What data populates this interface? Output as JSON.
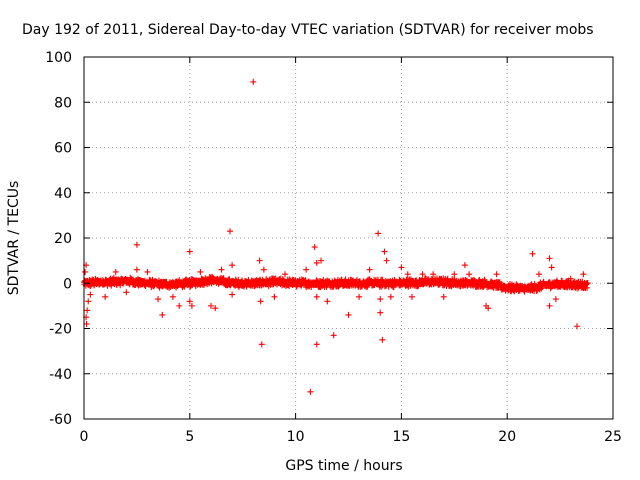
{
  "chart_data": {
    "type": "scatter",
    "title": "Day 192 of 2011, Sidereal Day-to-day VTEC variation (SDTVAR) for receiver mobs",
    "xlabel": "GPS time / hours",
    "ylabel": "SDTVAR / TECUs",
    "xlim": [
      0,
      25
    ],
    "ylim": [
      -60,
      100
    ],
    "xticks": [
      "0",
      "5",
      "10",
      "15",
      "20",
      "25"
    ],
    "yticks": [
      "-60",
      "-40",
      "-20",
      "0",
      "20",
      "40",
      "60",
      "80",
      "100"
    ],
    "grid": true,
    "marker": "plus",
    "series_color": "#ff0000",
    "band": {
      "x_start": 0,
      "x_end": 23.8,
      "step_hours": 0.03,
      "centers": [
        [
          0,
          0
        ],
        [
          1,
          0.5
        ],
        [
          2,
          1
        ],
        [
          3,
          0
        ],
        [
          4,
          -0.5
        ],
        [
          5,
          0
        ],
        [
          6,
          1.5
        ],
        [
          7,
          0
        ],
        [
          8,
          0
        ],
        [
          9,
          0.5
        ],
        [
          10,
          0
        ],
        [
          11,
          0
        ],
        [
          12,
          0
        ],
        [
          13,
          0
        ],
        [
          14,
          0
        ],
        [
          15,
          0
        ],
        [
          16,
          0.5
        ],
        [
          17,
          0.5
        ],
        [
          18,
          0
        ],
        [
          19,
          0
        ],
        [
          20,
          -2
        ],
        [
          21,
          -2.5
        ],
        [
          22,
          -0.5
        ],
        [
          23,
          -0.5
        ],
        [
          23.8,
          -1
        ]
      ]
    },
    "points": [
      {
        "x": 0.1,
        "y": 8
      },
      {
        "x": 0.1,
        "y": -15
      },
      {
        "x": 0.15,
        "y": -12
      },
      {
        "x": 0.2,
        "y": -8
      },
      {
        "x": 0.05,
        "y": 5
      },
      {
        "x": 0.3,
        "y": -5
      },
      {
        "x": 0.12,
        "y": -18
      },
      {
        "x": 1.0,
        "y": -6
      },
      {
        "x": 1.5,
        "y": 5
      },
      {
        "x": 2.0,
        "y": -4
      },
      {
        "x": 2.5,
        "y": 17
      },
      {
        "x": 2.5,
        "y": 6
      },
      {
        "x": 3.0,
        "y": 5
      },
      {
        "x": 3.5,
        "y": -7
      },
      {
        "x": 3.7,
        "y": -14
      },
      {
        "x": 4.2,
        "y": -6
      },
      {
        "x": 4.5,
        "y": -10
      },
      {
        "x": 5.0,
        "y": 14
      },
      {
        "x": 5.0,
        "y": -8
      },
      {
        "x": 5.1,
        "y": -10
      },
      {
        "x": 5.5,
        "y": 5
      },
      {
        "x": 6.0,
        "y": -10
      },
      {
        "x": 6.2,
        "y": -11
      },
      {
        "x": 6.5,
        "y": 6
      },
      {
        "x": 6.9,
        "y": 23
      },
      {
        "x": 7.0,
        "y": 8
      },
      {
        "x": 7.0,
        "y": -5
      },
      {
        "x": 8.0,
        "y": 89
      },
      {
        "x": 8.3,
        "y": 10
      },
      {
        "x": 8.35,
        "y": -8
      },
      {
        "x": 8.4,
        "y": -27
      },
      {
        "x": 8.5,
        "y": 6
      },
      {
        "x": 9.0,
        "y": -6
      },
      {
        "x": 9.5,
        "y": 4
      },
      {
        "x": 10.5,
        "y": 6
      },
      {
        "x": 10.9,
        "y": 16
      },
      {
        "x": 10.7,
        "y": -48
      },
      {
        "x": 11.0,
        "y": 9
      },
      {
        "x": 11.0,
        "y": -6
      },
      {
        "x": 11.0,
        "y": -27
      },
      {
        "x": 11.2,
        "y": 10
      },
      {
        "x": 11.5,
        "y": -8
      },
      {
        "x": 11.8,
        "y": -23
      },
      {
        "x": 12.5,
        "y": -14
      },
      {
        "x": 13.0,
        "y": -6
      },
      {
        "x": 13.5,
        "y": 6
      },
      {
        "x": 13.9,
        "y": 22
      },
      {
        "x": 14.0,
        "y": -7
      },
      {
        "x": 14.0,
        "y": -13
      },
      {
        "x": 14.1,
        "y": -25
      },
      {
        "x": 14.2,
        "y": 14
      },
      {
        "x": 14.3,
        "y": 10
      },
      {
        "x": 14.5,
        "y": -6
      },
      {
        "x": 15.0,
        "y": 7
      },
      {
        "x": 15.3,
        "y": 4
      },
      {
        "x": 15.5,
        "y": -6
      },
      {
        "x": 16.0,
        "y": 4
      },
      {
        "x": 16.5,
        "y": 4
      },
      {
        "x": 17.0,
        "y": -6
      },
      {
        "x": 17.5,
        "y": 4
      },
      {
        "x": 18.0,
        "y": 8
      },
      {
        "x": 18.2,
        "y": 4
      },
      {
        "x": 19.0,
        "y": -10
      },
      {
        "x": 19.1,
        "y": -11
      },
      {
        "x": 19.5,
        "y": 4
      },
      {
        "x": 20.0,
        "y": -2
      },
      {
        "x": 21.2,
        "y": 13
      },
      {
        "x": 21.5,
        "y": 4
      },
      {
        "x": 22.0,
        "y": 11
      },
      {
        "x": 22.1,
        "y": 7
      },
      {
        "x": 22.0,
        "y": -10
      },
      {
        "x": 22.3,
        "y": -7
      },
      {
        "x": 23.0,
        "y": 2
      },
      {
        "x": 23.3,
        "y": -19
      },
      {
        "x": 23.6,
        "y": 4
      }
    ]
  }
}
